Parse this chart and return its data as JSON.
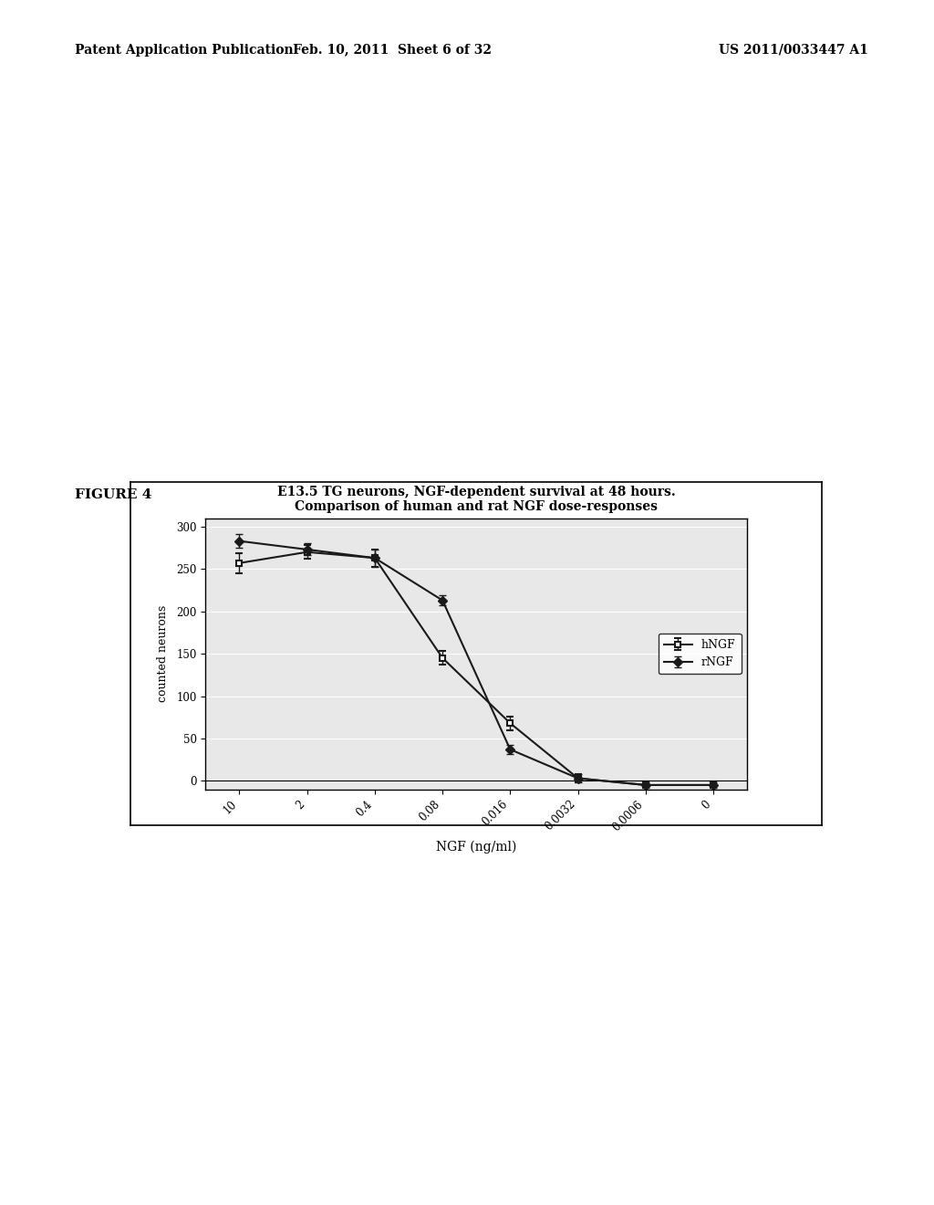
{
  "title_line1": "E13.5 TG neurons, NGF-dependent survival at 48 hours.",
  "title_line2": "Comparison of human and rat NGF dose-responses",
  "xlabel": "NGF (ng/ml)",
  "ylabel": "counted neurons",
  "header_left": "Patent Application Publication",
  "header_center": "Feb. 10, 2011  Sheet 6 of 32",
  "header_right": "US 2011/0033447 A1",
  "figure_label": "FIGURE 4",
  "x_labels": [
    "10",
    "2",
    "0.4",
    "0.08",
    "0.016",
    "0.0032",
    "0.0006",
    "0"
  ],
  "hNGF_y": [
    257,
    270,
    263,
    145,
    68,
    3,
    -5,
    -5
  ],
  "hNGF_yerr": [
    12,
    8,
    10,
    8,
    8,
    5,
    3,
    3
  ],
  "rNGF_y": [
    283,
    273,
    263,
    213,
    37,
    3,
    -5,
    -5
  ],
  "rNGF_yerr": [
    8,
    7,
    10,
    6,
    5,
    5,
    3,
    3
  ],
  "ylim": [
    -10,
    310
  ],
  "yticks": [
    0,
    50,
    100,
    150,
    200,
    250,
    300
  ],
  "line_color": "#1a1a1a",
  "bg_color": "#ffffff",
  "plot_bg": "#e8e8e8",
  "legend_hNGF": "hNGF",
  "legend_rNGF": "rNGF"
}
